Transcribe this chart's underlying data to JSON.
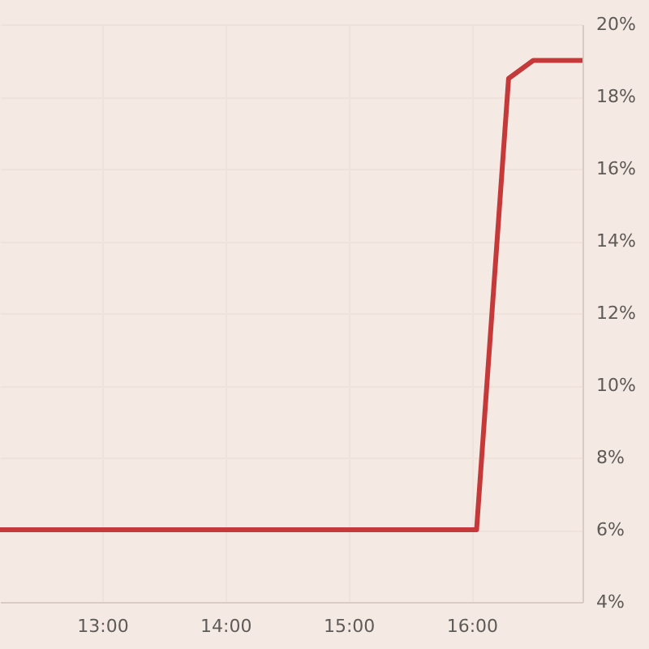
{
  "chart_data": {
    "type": "line",
    "x": [
      12.17,
      16.04,
      16.3,
      16.5,
      16.9
    ],
    "series": [
      {
        "color": "#c43a3a",
        "values": [
          6,
          6,
          18.5,
          19,
          19
        ]
      }
    ],
    "xlim": [
      12.17,
      16.9
    ],
    "xticks": [
      {
        "value": 13,
        "label": "13:00"
      },
      {
        "value": 14,
        "label": "14:00"
      },
      {
        "value": 15,
        "label": "15:00"
      },
      {
        "value": 16,
        "label": "16:00"
      }
    ],
    "ylim": [
      4,
      20
    ],
    "yticks": [
      {
        "value": 4,
        "label": "4%"
      },
      {
        "value": 6,
        "label": "6%"
      },
      {
        "value": 8,
        "label": "8%"
      },
      {
        "value": 10,
        "label": "10%"
      },
      {
        "value": 12,
        "label": "12%"
      },
      {
        "value": 14,
        "label": "14%"
      },
      {
        "value": 16,
        "label": "16%"
      },
      {
        "value": 18,
        "label": "18%"
      },
      {
        "value": 20,
        "label": "20%"
      }
    ],
    "grid": true,
    "line_style": "solid"
  }
}
